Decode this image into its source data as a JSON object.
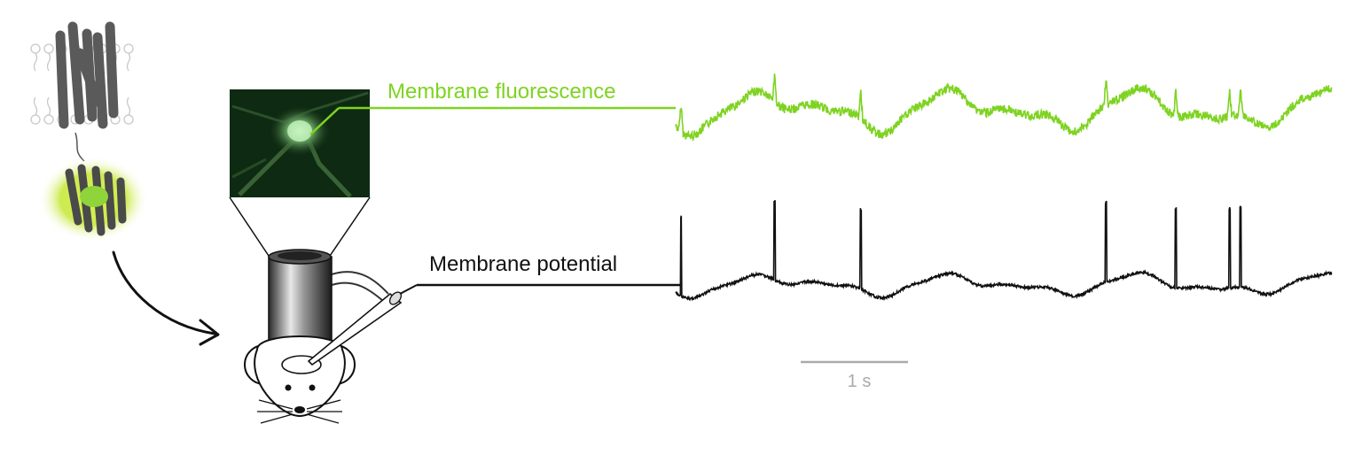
{
  "labels": {
    "fluorescence": "Membrane fluorescence",
    "potential": "Membrane potential",
    "scalebar": "1 s"
  },
  "colors": {
    "fluorescence": "#7ed321",
    "potential": "#000000",
    "scalebar": "#aaaaaa"
  },
  "icons": {
    "protein": "membrane-protein-with-fluorescent-domain-icon",
    "arrow": "curved-arrow-icon",
    "micrograph": "fluorescent-neuron-micrograph",
    "objective": "microscope-objective-icon",
    "mouse": "mouse-with-electrode-icon"
  },
  "traces": {
    "spike_times_s": [
      0.05,
      0.92,
      1.72,
      4.0,
      4.65,
      5.15,
      5.25
    ]
  }
}
